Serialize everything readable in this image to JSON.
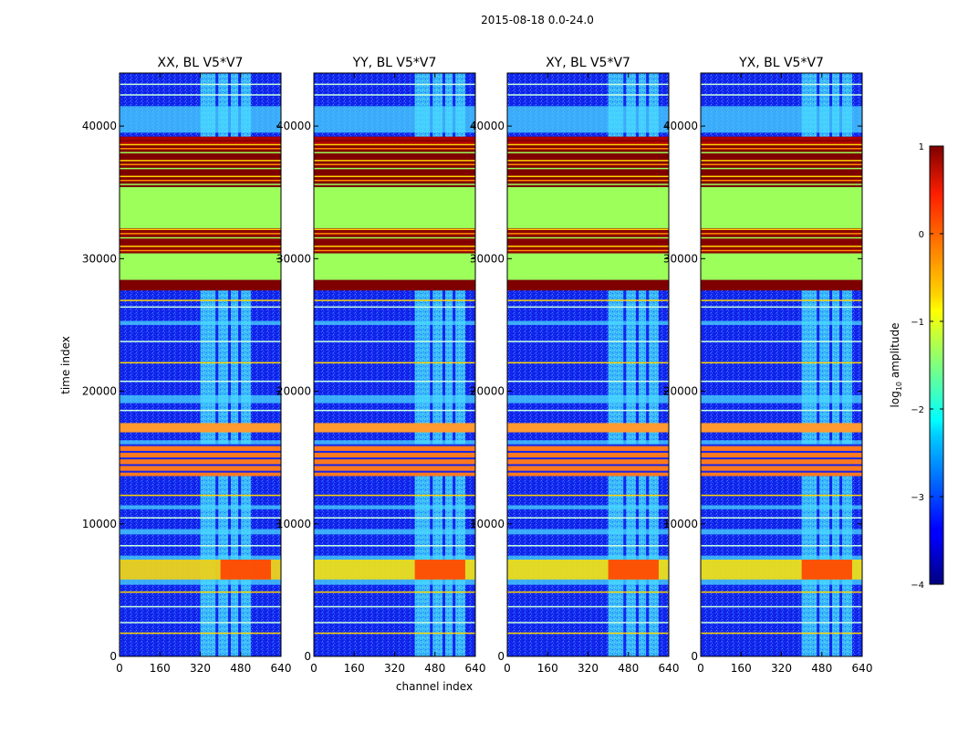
{
  "chart_data": {
    "type": "heatmap",
    "title": "2015-08-18 0.0-24.0",
    "xlabel": "channel index",
    "ylabel": "time index",
    "xlim": [
      0,
      640
    ],
    "ylim": [
      0,
      44000
    ],
    "x_ticks": [
      0,
      160,
      320,
      480,
      640
    ],
    "y_ticks": [
      0,
      10000,
      20000,
      30000,
      40000
    ],
    "panels": [
      {
        "name": "XX",
        "title": "XX, BL V5*V7"
      },
      {
        "name": "YY",
        "title": "YY, BL V5*V7"
      },
      {
        "name": "XY",
        "title": "XY, BL V5*V7"
      },
      {
        "name": "YX",
        "title": "YX, BL V5*V7"
      }
    ],
    "colorbar": {
      "label": "log10 amplitude",
      "min": -4,
      "max": 1,
      "ticks": [
        1,
        0,
        -1,
        -2,
        -3,
        -4
      ],
      "colormap": "jet"
    }
  }
}
